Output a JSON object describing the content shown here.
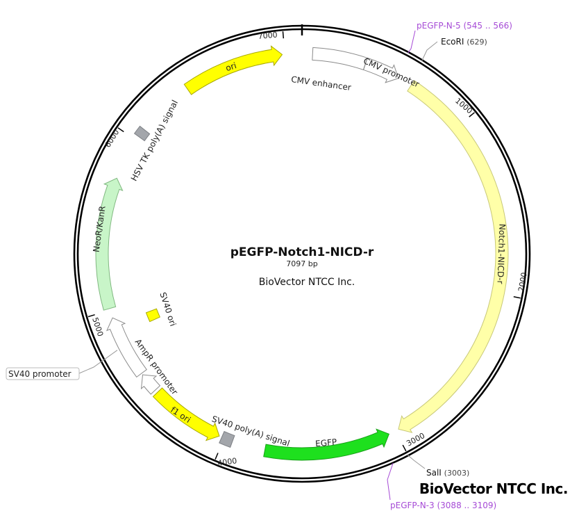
{
  "plasmid": {
    "name": "pEGFP-Notch1-NICD-r",
    "length_label": "7097 bp",
    "length_bp": 7097,
    "company": "BioVector NTCC Inc.",
    "watermark": "BioVector NTCC Inc."
  },
  "ticks": [
    {
      "bp": 1000,
      "label": "1000"
    },
    {
      "bp": 2000,
      "label": "2000"
    },
    {
      "bp": 3000,
      "label": "3000"
    },
    {
      "bp": 4000,
      "label": "4000"
    },
    {
      "bp": 5000,
      "label": "5000"
    },
    {
      "bp": 6000,
      "label": "6000"
    },
    {
      "bp": 7000,
      "label": "7000"
    }
  ],
  "features": [
    {
      "name": "CMV enhancer",
      "start": 60,
      "end": 364,
      "dir": "none",
      "color": "#ffffff",
      "stroke": "#8a8a8a"
    },
    {
      "name": "CMV promoter",
      "start": 365,
      "end": 568,
      "dir": "forward",
      "color": "#ffffff",
      "stroke": "#8a8a8a"
    },
    {
      "name": "Notch1-NICD-r",
      "start": 650,
      "end": 2980,
      "dir": "forward",
      "color": "#ffffa8",
      "stroke": "#c8c878"
    },
    {
      "name": "EGFP",
      "start": 3040,
      "end": 3760,
      "dir": "reverse",
      "color": "#1ee01e",
      "stroke": "#18a018"
    },
    {
      "name": "SV40 poly(A) signal",
      "start": 3950,
      "end": 4015,
      "dir": "none",
      "color": "#a3a6ab",
      "stroke": "#7c7f84"
    },
    {
      "name": "f1 ori",
      "start": 4030,
      "end": 4460,
      "dir": "reverse",
      "color": "#ffff00",
      "stroke": "#a8a800"
    },
    {
      "name": "AmpR promoter",
      "start": 4478,
      "end": 4590,
      "dir": "forward",
      "color": "#ffffff",
      "stroke": "#8a8a8a"
    },
    {
      "name": "SV40 promoter",
      "start": 4600,
      "end": 4955,
      "dir": "forward",
      "color": "#ffffff",
      "stroke": "#8a8a8a"
    },
    {
      "name": "NeoR/KanR",
      "start": 5010,
      "end": 5760,
      "dir": "forward",
      "color": "#c8f5c8",
      "stroke": "#80b880"
    },
    {
      "name": "HSV TK poly(A) signal",
      "start": 6025,
      "end": 6075,
      "dir": "none",
      "color": "#a3a6ab",
      "stroke": "#7c7f84"
    },
    {
      "name": "ori",
      "start": 6410,
      "end": 6985,
      "dir": "forward",
      "color": "#ffff00",
      "stroke": "#a8a800"
    },
    {
      "name": "SV40 ori",
      "start": 4850,
      "end": 4915,
      "dir": "none",
      "color": "#ffff00",
      "stroke": "#a8a800",
      "track": "inner"
    }
  ],
  "sites": [
    {
      "name": "EcoRI",
      "pos": "(629)",
      "bp": 629
    },
    {
      "name": "SalI",
      "pos": "(3003)",
      "bp": 3003
    }
  ],
  "primers": [
    {
      "name": "pEGFP-N-5",
      "pos": "(545 .. 566)",
      "bp": 555
    },
    {
      "name": "pEGFP-N-3",
      "pos": "(3088 .. 3109)",
      "bp": 3098
    }
  ]
}
